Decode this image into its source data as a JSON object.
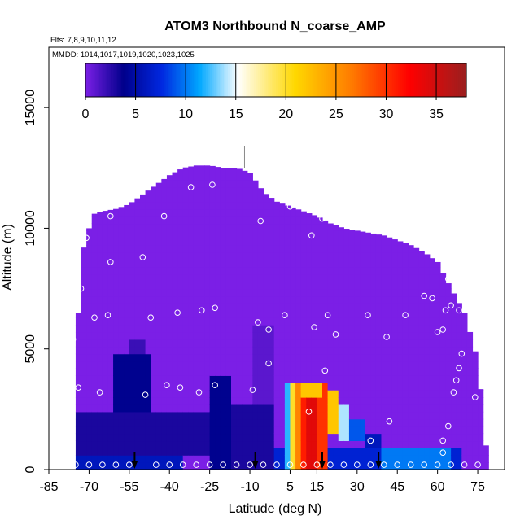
{
  "chart_data": {
    "type": "heatmap",
    "title": "ATOM3 Northbound N_coarse_AMP",
    "flights_note": "Flts: 7,8,9,10,11,12",
    "dates_note": "MMDD: 1014,1017,1019,1020,1023,1025",
    "xlabel": "Latitude (deg N)",
    "ylabel": "Altitude (m)",
    "xlim": [
      -85,
      85
    ],
    "ylim": [
      0,
      17500
    ],
    "x_ticks": [
      -85,
      -70,
      -55,
      -40,
      -25,
      -10,
      5,
      15,
      30,
      45,
      60,
      75
    ],
    "y_ticks": [
      0,
      5000,
      10000,
      15000
    ],
    "colorbar": {
      "range": [
        0,
        38
      ],
      "ticks": [
        0,
        5,
        10,
        15,
        20,
        25,
        30,
        35
      ],
      "colors": [
        "#7b1fe6",
        "#00008b",
        "#0028e0",
        "#00a8ff",
        "#ffffff",
        "#ffd800",
        "#ff7a00",
        "#ff0000",
        "#9a1f1f"
      ],
      "stops": [
        0,
        0.1,
        0.2,
        0.3,
        0.4,
        0.55,
        0.7,
        0.85,
        1.0
      ]
    },
    "domain_envelope": {
      "lat": [
        -75,
        -73,
        -72,
        -70,
        -68,
        -65,
        -60,
        -55,
        -50,
        -45,
        -40,
        -35,
        -30,
        -25,
        -20,
        -15,
        -10,
        -5,
        0,
        5,
        10,
        15,
        20,
        25,
        30,
        35,
        40,
        45,
        50,
        55,
        60,
        65,
        70,
        75,
        78
      ],
      "top_alt": [
        5500,
        7500,
        9200,
        10000,
        10600,
        10700,
        10800,
        11000,
        11400,
        11800,
        12200,
        12500,
        12600,
        12600,
        12500,
        12500,
        12300,
        11500,
        11100,
        10900,
        10700,
        10500,
        10200,
        10000,
        9900,
        9800,
        9700,
        9500,
        9300,
        9000,
        8600,
        7500,
        6500,
        4500,
        1000
      ]
    },
    "background_value": 0,
    "features": [
      {
        "lat_min": -75,
        "lat_max": -35,
        "alt_min": 0,
        "alt_max": 700,
        "value": 6
      },
      {
        "lat_min": -75,
        "lat_max": -25,
        "alt_min": 700,
        "alt_max": 2400,
        "value": 3
      },
      {
        "lat_min": -60,
        "lat_max": -46,
        "alt_min": 2400,
        "alt_max": 4800,
        "value": 4
      },
      {
        "lat_min": -55,
        "lat_max": -48,
        "alt_min": 4800,
        "alt_max": 5500,
        "value": 2
      },
      {
        "lat_min": -25,
        "lat_max": -16,
        "alt_min": 0,
        "alt_max": 4000,
        "value": 4
      },
      {
        "lat_min": -16,
        "lat_max": 0,
        "alt_min": 0,
        "alt_max": 2600,
        "value": 3
      },
      {
        "lat_min": -8,
        "lat_max": 0,
        "alt_min": 2600,
        "alt_max": 6000,
        "value": 1
      },
      {
        "lat_min": 0,
        "lat_max": 70,
        "alt_min": 0,
        "alt_max": 1000,
        "value": 7
      },
      {
        "lat_min": 4,
        "lat_max": 6,
        "alt_min": 0,
        "alt_max": 3700,
        "value": 12
      },
      {
        "lat_min": 6,
        "lat_max": 8,
        "alt_min": 0,
        "alt_max": 3700,
        "value": 20
      },
      {
        "lat_min": 8,
        "lat_max": 10,
        "alt_min": 0,
        "alt_max": 3700,
        "value": 26
      },
      {
        "lat_min": 10,
        "lat_max": 12,
        "alt_min": 0,
        "alt_max": 3700,
        "value": 31
      },
      {
        "lat_min": 12,
        "lat_max": 16,
        "alt_min": 0,
        "alt_max": 3700,
        "value": 34
      },
      {
        "lat_min": 16,
        "lat_max": 20,
        "alt_min": 0,
        "alt_max": 3600,
        "value": 30
      },
      {
        "lat_min": 10,
        "lat_max": 18,
        "alt_min": 3000,
        "alt_max": 3600,
        "value": 22
      },
      {
        "lat_min": 20,
        "lat_max": 24,
        "alt_min": 1600,
        "alt_max": 3300,
        "value": 22
      },
      {
        "lat_min": 24,
        "lat_max": 28,
        "alt_min": 1200,
        "alt_max": 2800,
        "value": 14
      },
      {
        "lat_min": 28,
        "lat_max": 34,
        "alt_min": 1100,
        "alt_max": 2000,
        "value": 9
      },
      {
        "lat_min": 34,
        "lat_max": 40,
        "alt_min": 900,
        "alt_max": 1400,
        "value": 6
      },
      {
        "lat_min": 40,
        "lat_max": 65,
        "alt_min": 0,
        "alt_max": 800,
        "value": 10
      }
    ],
    "flight_arrow_lats": [
      -53,
      -8,
      17,
      38
    ],
    "sample_points": [
      [
        -75,
        200
      ],
      [
        -70,
        200
      ],
      [
        -65,
        200
      ],
      [
        -60,
        200
      ],
      [
        -55,
        200
      ],
      [
        -45,
        200
      ],
      [
        -40,
        200
      ],
      [
        -35,
        200
      ],
      [
        -30,
        200
      ],
      [
        -25,
        200
      ],
      [
        -20,
        200
      ],
      [
        -15,
        200
      ],
      [
        -10,
        200
      ],
      [
        -5,
        200
      ],
      [
        0,
        200
      ],
      [
        5,
        200
      ],
      [
        10,
        200
      ],
      [
        15,
        200
      ],
      [
        20,
        200
      ],
      [
        25,
        200
      ],
      [
        30,
        200
      ],
      [
        35,
        200
      ],
      [
        40,
        200
      ],
      [
        45,
        200
      ],
      [
        50,
        200
      ],
      [
        55,
        200
      ],
      [
        60,
        200
      ],
      [
        65,
        200
      ],
      [
        70,
        200
      ],
      [
        75,
        200
      ],
      [
        -74,
        3400
      ],
      [
        -66,
        3200
      ],
      [
        -49,
        3100
      ],
      [
        -41,
        3500
      ],
      [
        -36,
        3400
      ],
      [
        -29,
        3200
      ],
      [
        -23,
        3500
      ],
      [
        -9,
        3300
      ],
      [
        -3,
        4400
      ],
      [
        12,
        2400
      ],
      [
        18,
        4100
      ],
      [
        35,
        1200
      ],
      [
        42,
        2000
      ],
      [
        62,
        1200
      ],
      [
        64,
        1800
      ],
      [
        66,
        3200
      ],
      [
        67,
        3700
      ],
      [
        68,
        4200
      ],
      [
        69,
        4800
      ],
      [
        74,
        3000
      ],
      [
        62,
        700
      ],
      [
        -76,
        5400
      ],
      [
        -73,
        7500
      ],
      [
        -68,
        6300
      ],
      [
        -63,
        6400
      ],
      [
        -47,
        6300
      ],
      [
        -37,
        6500
      ],
      [
        -28,
        6600
      ],
      [
        -23,
        6700
      ],
      [
        -7,
        6100
      ],
      [
        -3,
        5800
      ],
      [
        3,
        6400
      ],
      [
        14,
        5900
      ],
      [
        19,
        6400
      ],
      [
        22,
        5600
      ],
      [
        34,
        6400
      ],
      [
        41,
        5500
      ],
      [
        48,
        6400
      ],
      [
        55,
        7200
      ],
      [
        58,
        7100
      ],
      [
        60,
        5700
      ],
      [
        62,
        5800
      ],
      [
        63,
        6600
      ],
      [
        65,
        6800
      ],
      [
        68,
        6600
      ],
      [
        70,
        7000
      ],
      [
        73,
        6600
      ],
      [
        64,
        7900
      ],
      [
        66,
        8400
      ],
      [
        -71,
        9600
      ],
      [
        -62,
        8600
      ],
      [
        -50,
        8800
      ],
      [
        -62,
        10500
      ],
      [
        -42,
        10500
      ],
      [
        -32,
        11700
      ],
      [
        -24,
        11800
      ],
      [
        -12,
        12600
      ],
      [
        -6,
        10300
      ],
      [
        5,
        10900
      ],
      [
        13,
        9700
      ],
      [
        17,
        10400
      ],
      [
        24,
        10400
      ]
    ]
  }
}
